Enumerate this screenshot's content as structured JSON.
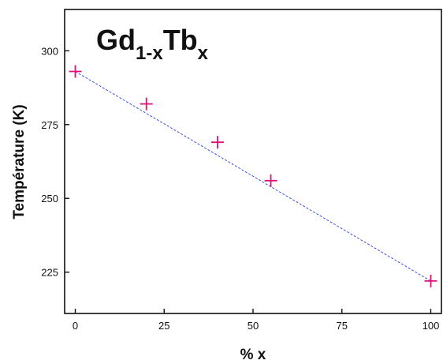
{
  "chart_data": {
    "type": "scatter",
    "xlabel": "% x",
    "ylabel": "Température (K)",
    "xlim": [
      -3,
      103
    ],
    "ylim": [
      211,
      314
    ],
    "x_ticks": [
      0,
      25,
      50,
      75,
      100
    ],
    "y_ticks": [
      225,
      250,
      275,
      300
    ],
    "grid": false,
    "annotation": {
      "main1": "Gd",
      "sub1": "1-x",
      "main2": "Tb",
      "sub2": "x"
    },
    "series": [
      {
        "marker": "plus",
        "color": "#e0107a",
        "x": [
          0,
          20,
          40,
          55,
          100
        ],
        "y": [
          293,
          282,
          269,
          256,
          222
        ]
      }
    ],
    "fit_line": {
      "style": "dashed",
      "color": "#3a4ee0",
      "x": [
        0,
        100
      ],
      "y": [
        293,
        222
      ]
    }
  }
}
